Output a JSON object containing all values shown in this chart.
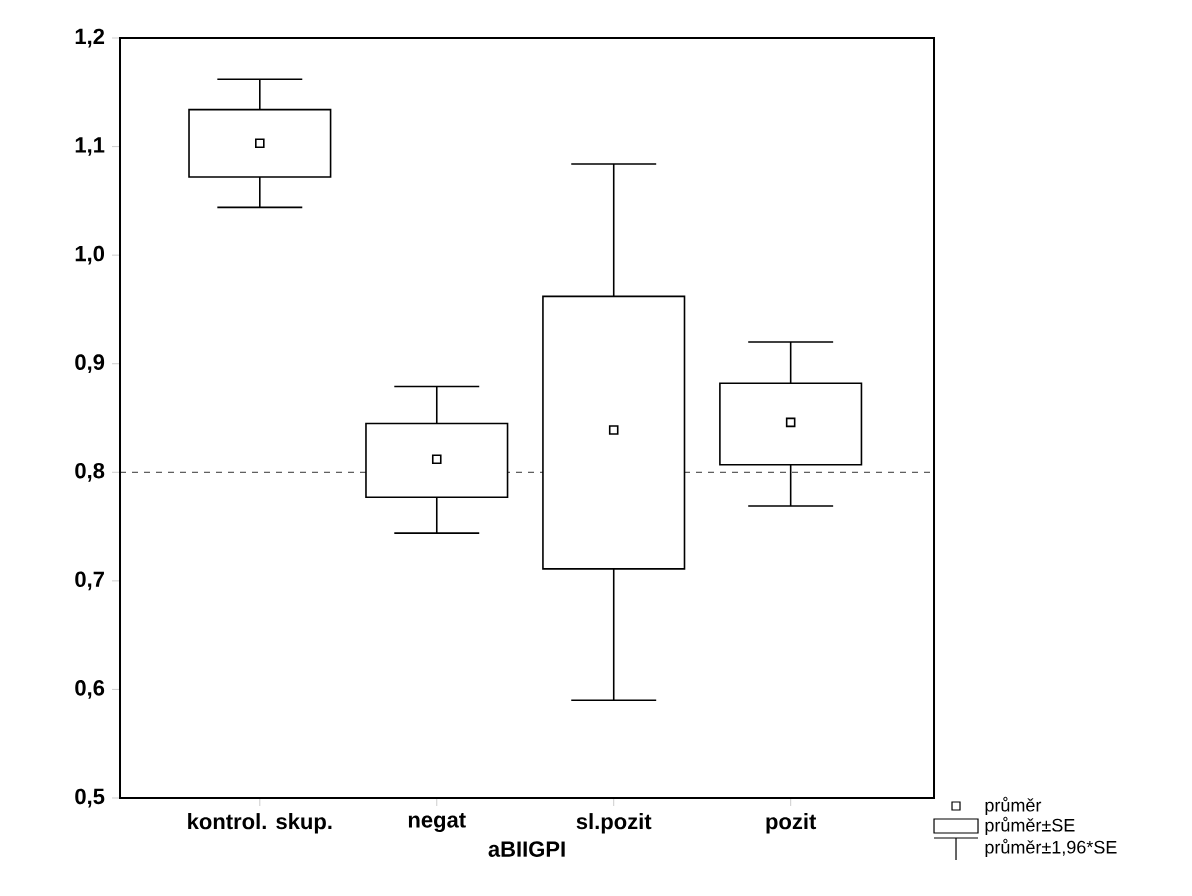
{
  "chart_data": {
    "type": "box",
    "xlabel": "aBIIGPI",
    "categories": [
      "kontrol. skup.",
      "negat",
      "sl.pozit",
      "pozit"
    ],
    "boxes": [
      {
        "low": 1.044,
        "q1": 1.072,
        "mean": 1.103,
        "q3": 1.134,
        "high": 1.162
      },
      {
        "low": 0.744,
        "q1": 0.777,
        "mean": 0.812,
        "q3": 0.845,
        "high": 0.879
      },
      {
        "low": 0.59,
        "q1": 0.711,
        "mean": 0.839,
        "q3": 0.962,
        "high": 1.084
      },
      {
        "low": 0.769,
        "q1": 0.807,
        "mean": 0.846,
        "q3": 0.882,
        "high": 0.92
      }
    ],
    "ylim": [
      0.5,
      1.2
    ],
    "yticks": [
      {
        "value": 0.5,
        "label": "0,5"
      },
      {
        "value": 0.6,
        "label": "0,6"
      },
      {
        "value": 0.7,
        "label": "0,7"
      },
      {
        "value": 0.8,
        "label": "0,8"
      },
      {
        "value": 0.9,
        "label": "0,9"
      },
      {
        "value": 1.0,
        "label": "1,0"
      },
      {
        "value": 1.1,
        "label": "1,1"
      },
      {
        "value": 1.2,
        "label": "1,2"
      }
    ],
    "ref_lines": [
      {
        "axis": "y",
        "value": 0.8,
        "line_style": "dashed"
      }
    ],
    "marker": "square",
    "grid": false,
    "annotations": [
      "průměr",
      "průměr±SE",
      "průměr±1,96*SE"
    ]
  }
}
